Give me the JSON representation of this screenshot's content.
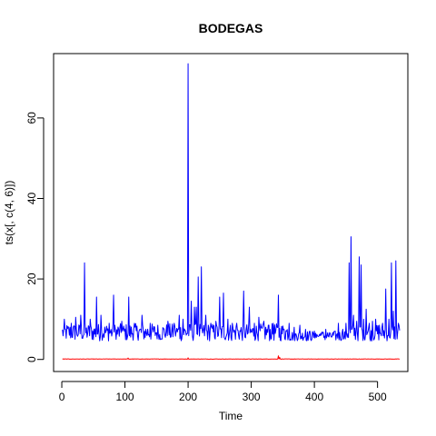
{
  "chart_data": {
    "type": "line",
    "title": "BODEGAS",
    "xlabel": "Time",
    "ylabel": "ts(x[, c(4, 6)])",
    "xlim": [
      -13,
      548
    ],
    "ylim": [
      -3,
      76
    ],
    "x_ticks": [
      0,
      100,
      200,
      300,
      400,
      500
    ],
    "y_ticks": [
      0,
      20,
      40,
      60
    ],
    "grid": false,
    "legend": "none",
    "n_points": 535,
    "series": [
      {
        "color": "#0000ff",
        "baseline": 6.5,
        "spikes": [
          {
            "x": 4,
            "y": 10.0
          },
          {
            "x": 15,
            "y": 9.0
          },
          {
            "x": 22,
            "y": 10.5
          },
          {
            "x": 30,
            "y": 11.0
          },
          {
            "x": 36,
            "y": 24.0
          },
          {
            "x": 45,
            "y": 10.0
          },
          {
            "x": 55,
            "y": 15.5
          },
          {
            "x": 62,
            "y": 11.0
          },
          {
            "x": 75,
            "y": 9.0
          },
          {
            "x": 82,
            "y": 16.0
          },
          {
            "x": 95,
            "y": 9.5
          },
          {
            "x": 106,
            "y": 15.5
          },
          {
            "x": 115,
            "y": 9.0
          },
          {
            "x": 127,
            "y": 11.0
          },
          {
            "x": 140,
            "y": 9.0
          },
          {
            "x": 152,
            "y": 8.5
          },
          {
            "x": 168,
            "y": 9.5
          },
          {
            "x": 178,
            "y": 9.0
          },
          {
            "x": 186,
            "y": 11.0
          },
          {
            "x": 192,
            "y": 10.0
          },
          {
            "x": 200,
            "y": 73.5
          },
          {
            "x": 205,
            "y": 14.5
          },
          {
            "x": 210,
            "y": 13.0
          },
          {
            "x": 213,
            "y": 13.0
          },
          {
            "x": 216,
            "y": 20.5
          },
          {
            "x": 221,
            "y": 23.0
          },
          {
            "x": 228,
            "y": 11.0
          },
          {
            "x": 236,
            "y": 9.0
          },
          {
            "x": 244,
            "y": 9.5
          },
          {
            "x": 250,
            "y": 15.5
          },
          {
            "x": 256,
            "y": 16.5
          },
          {
            "x": 263,
            "y": 10.0
          },
          {
            "x": 270,
            "y": 9.0
          },
          {
            "x": 277,
            "y": 9.0
          },
          {
            "x": 288,
            "y": 17.0
          },
          {
            "x": 297,
            "y": 13.0
          },
          {
            "x": 305,
            "y": 9.0
          },
          {
            "x": 312,
            "y": 10.5
          },
          {
            "x": 320,
            "y": 9.5
          },
          {
            "x": 328,
            "y": 8.5
          },
          {
            "x": 335,
            "y": 9.0
          },
          {
            "x": 343,
            "y": 16.0
          },
          {
            "x": 352,
            "y": 7.5
          },
          {
            "x": 360,
            "y": 9.0
          },
          {
            "x": 368,
            "y": 8.0
          },
          {
            "x": 377,
            "y": 8.5
          },
          {
            "x": 386,
            "y": 7.5
          },
          {
            "x": 393,
            "y": 7.0
          },
          {
            "x": 402,
            "y": 6.5
          },
          {
            "x": 410,
            "y": 6.5
          },
          {
            "x": 418,
            "y": 7.5
          },
          {
            "x": 425,
            "y": 6.5
          },
          {
            "x": 432,
            "y": 7.0
          },
          {
            "x": 438,
            "y": 9.0
          },
          {
            "x": 445,
            "y": 7.5
          },
          {
            "x": 450,
            "y": 9.0
          },
          {
            "x": 455,
            "y": 24.0
          },
          {
            "x": 458,
            "y": 30.5
          },
          {
            "x": 462,
            "y": 11.0
          },
          {
            "x": 467,
            "y": 9.5
          },
          {
            "x": 471,
            "y": 25.5
          },
          {
            "x": 474,
            "y": 23.5
          },
          {
            "x": 478,
            "y": 10.0
          },
          {
            "x": 482,
            "y": 12.5
          },
          {
            "x": 487,
            "y": 9.0
          },
          {
            "x": 492,
            "y": 9.5
          },
          {
            "x": 497,
            "y": 10.0
          },
          {
            "x": 503,
            "y": 8.5
          },
          {
            "x": 508,
            "y": 9.0
          },
          {
            "x": 513,
            "y": 17.5
          },
          {
            "x": 518,
            "y": 10.0
          },
          {
            "x": 522,
            "y": 24.0
          },
          {
            "x": 525,
            "y": 12.0
          },
          {
            "x": 529,
            "y": 24.5
          },
          {
            "x": 533,
            "y": 9.0
          }
        ]
      },
      {
        "color": "#ff0000",
        "baseline": 0.1,
        "spikes": [
          {
            "x": 105,
            "y": 0.35
          },
          {
            "x": 200,
            "y": 0.4
          },
          {
            "x": 343,
            "y": 0.9
          },
          {
            "x": 345,
            "y": 0.5
          }
        ]
      }
    ]
  }
}
